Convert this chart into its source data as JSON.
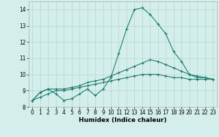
{
  "xlabel": "Humidex (Indice chaleur)",
  "x": [
    0,
    1,
    2,
    3,
    4,
    5,
    6,
    7,
    8,
    9,
    10,
    11,
    12,
    13,
    14,
    15,
    16,
    17,
    18,
    19,
    20,
    21,
    22,
    23
  ],
  "line1": [
    8.4,
    8.9,
    9.1,
    8.8,
    8.4,
    8.5,
    8.8,
    9.1,
    8.7,
    9.1,
    9.8,
    11.3,
    12.8,
    14.0,
    14.1,
    13.7,
    13.1,
    12.5,
    11.4,
    10.8,
    10.0,
    9.8,
    9.8,
    9.7
  ],
  "line2": [
    8.4,
    8.9,
    9.1,
    9.1,
    9.1,
    9.2,
    9.3,
    9.5,
    9.6,
    9.7,
    9.9,
    10.1,
    10.3,
    10.5,
    10.7,
    10.9,
    10.8,
    10.6,
    10.4,
    10.2,
    10.0,
    9.9,
    9.8,
    9.7
  ],
  "line3": [
    8.4,
    8.6,
    8.8,
    9.0,
    9.0,
    9.1,
    9.2,
    9.3,
    9.4,
    9.5,
    9.6,
    9.7,
    9.8,
    9.9,
    10.0,
    10.0,
    10.0,
    9.9,
    9.8,
    9.8,
    9.7,
    9.7,
    9.7,
    9.7
  ],
  "line_color": "#1a7a6e",
  "bg_color": "#d4eeeb",
  "grid_color": "#b8d8d4",
  "ylim": [
    8,
    14.5
  ],
  "xlim": [
    -0.5,
    23.5
  ],
  "yticks": [
    8,
    9,
    10,
    11,
    12,
    13,
    14
  ],
  "xticks": [
    0,
    1,
    2,
    3,
    4,
    5,
    6,
    7,
    8,
    9,
    10,
    11,
    12,
    13,
    14,
    15,
    16,
    17,
    18,
    19,
    20,
    21,
    22,
    23
  ],
  "xlabel_fontsize": 6.5,
  "tick_fontsize": 5.5,
  "lw": 0.8,
  "ms": 2.5
}
